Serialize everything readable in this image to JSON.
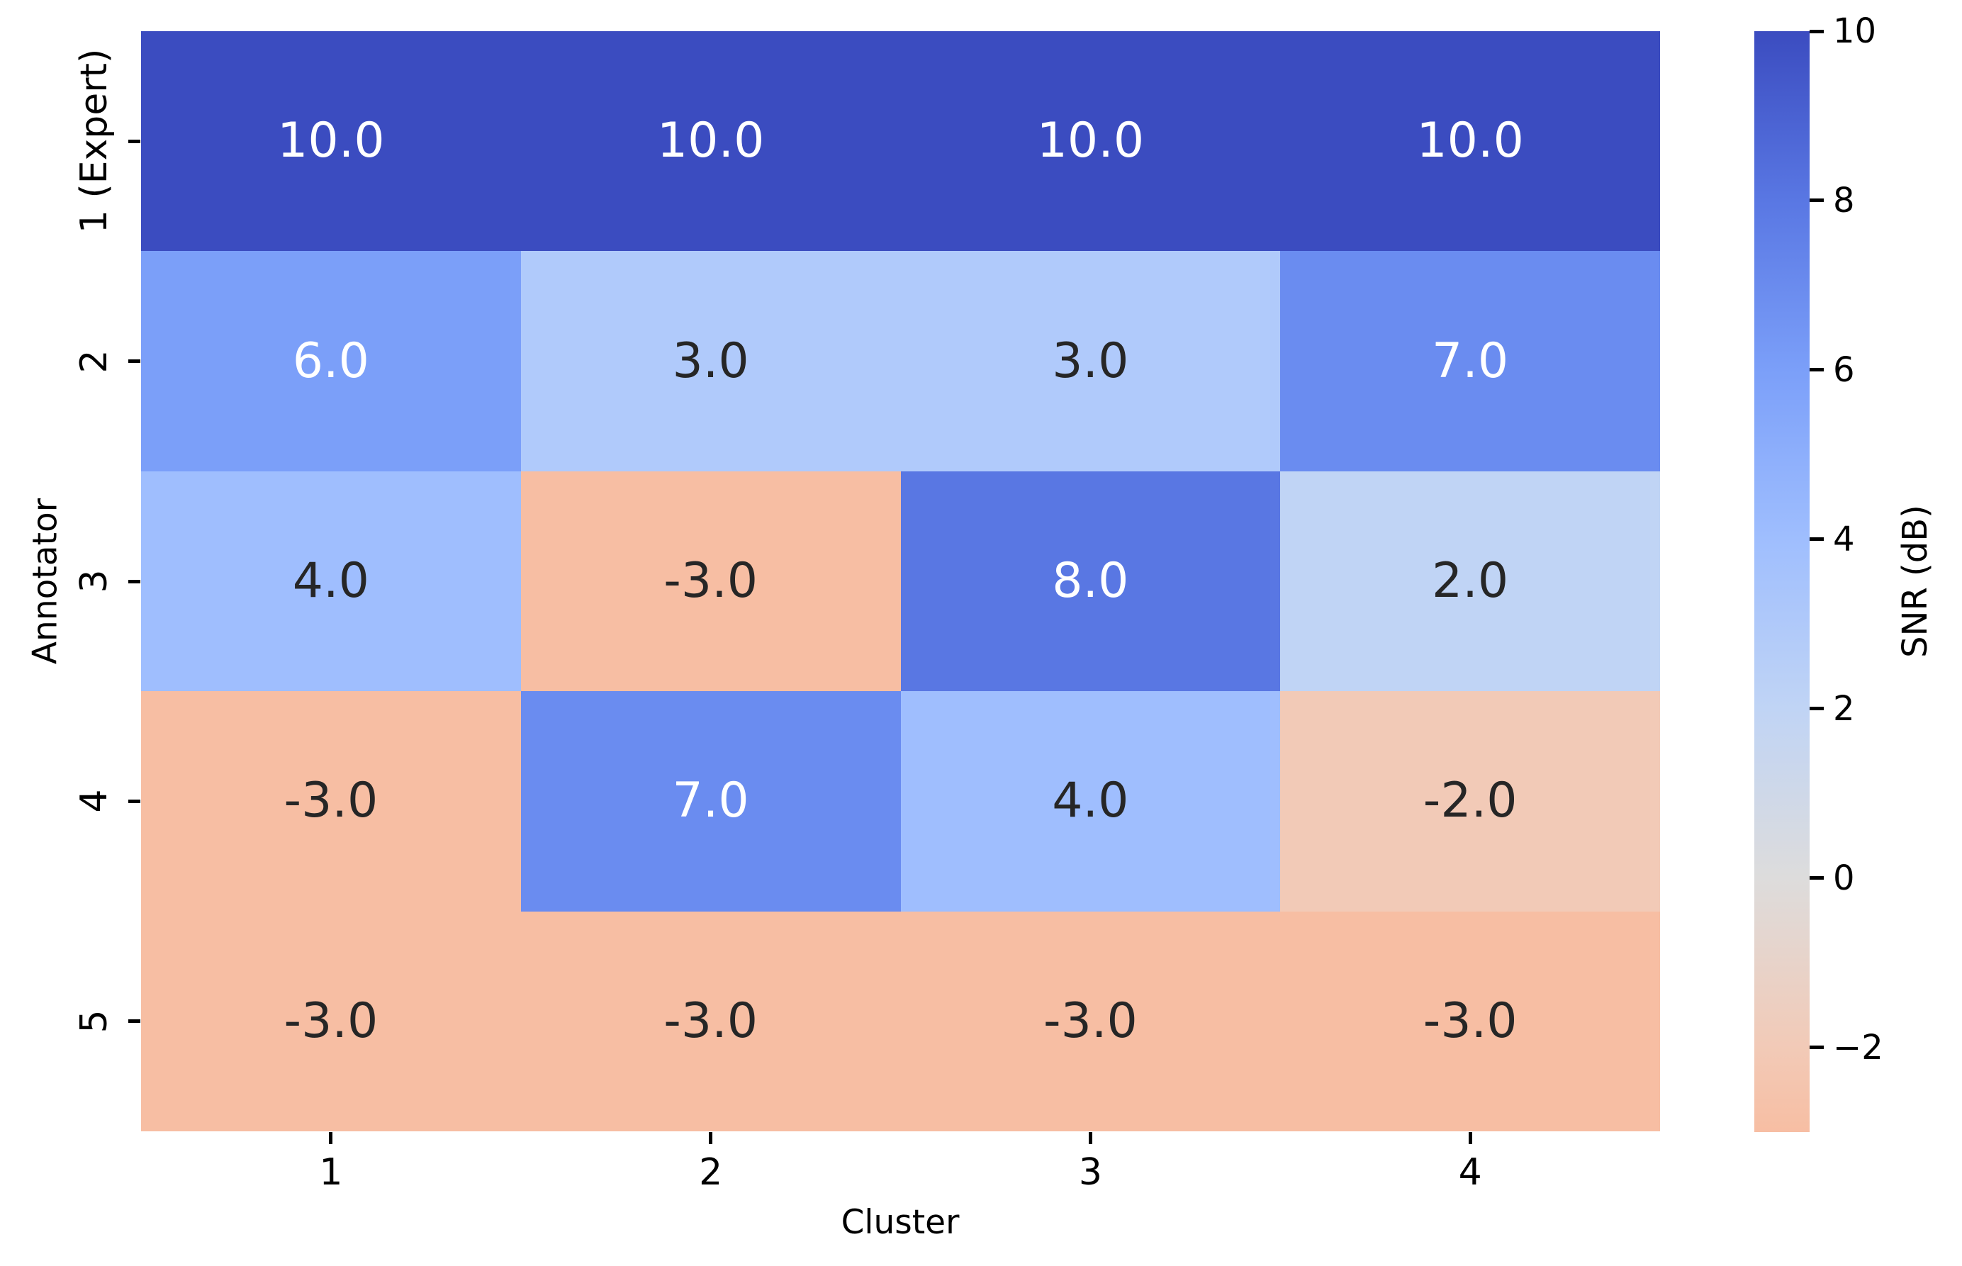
{
  "figure": {
    "background": "#ffffff",
    "text_color": "#000000"
  },
  "chart_data": {
    "type": "heatmap",
    "title": "",
    "xlabel": "Cluster",
    "ylabel": "Annotator",
    "x_categories": [
      "1",
      "2",
      "3",
      "4"
    ],
    "y_categories": [
      "1 (Expert)",
      "2",
      "3",
      "4",
      "5"
    ],
    "values": [
      [
        10.0,
        10.0,
        10.0,
        10.0
      ],
      [
        6.0,
        3.0,
        3.0,
        7.0
      ],
      [
        4.0,
        -3.0,
        8.0,
        2.0
      ],
      [
        -3.0,
        7.0,
        4.0,
        -2.0
      ],
      [
        -3.0,
        -3.0,
        -3.0,
        -3.0
      ]
    ],
    "annotations": [
      [
        "10.0",
        "10.0",
        "10.0",
        "10.0"
      ],
      [
        "6.0",
        "3.0",
        "3.0",
        "7.0"
      ],
      [
        "4.0",
        "-3.0",
        "8.0",
        "2.0"
      ],
      [
        "-3.0",
        "7.0",
        "4.0",
        "-2.0"
      ],
      [
        "-3.0",
        "-3.0",
        "-3.0",
        "-3.0"
      ]
    ],
    "cell_colors": [
      [
        "#3b4cc0",
        "#3b4cc0",
        "#3b4cc0",
        "#3b4cc0"
      ],
      [
        "#7b9ff9",
        "#b0cafb",
        "#b0cafb",
        "#6a8cf0"
      ],
      [
        "#9fbefe",
        "#f7bea3",
        "#5977e3",
        "#c0d4f5"
      ],
      [
        "#f7bea3",
        "#6a8cf0",
        "#9fbefe",
        "#f2cab7"
      ],
      [
        "#f7bea3",
        "#f7bea3",
        "#f7bea3",
        "#f7bea3"
      ]
    ],
    "text_colors": [
      [
        "#ffffff",
        "#ffffff",
        "#ffffff",
        "#ffffff"
      ],
      [
        "#ffffff",
        "#262626",
        "#262626",
        "#ffffff"
      ],
      [
        "#262626",
        "#262626",
        "#ffffff",
        "#262626"
      ],
      [
        "#262626",
        "#ffffff",
        "#262626",
        "#262626"
      ],
      [
        "#262626",
        "#262626",
        "#262626",
        "#262626"
      ]
    ],
    "grid": false,
    "colormap": "coolwarm_r",
    "colorbar": {
      "label": "SNR (dB)",
      "vmin": -3,
      "vmax": 10,
      "tick_labels": [
        "10",
        "8",
        "6",
        "4",
        "2",
        "0",
        "−2"
      ],
      "tick_values": [
        10,
        8,
        6,
        4,
        2,
        0,
        -2
      ],
      "gradient_stops": [
        {
          "pos": "0%",
          "color": "#3b4cc0"
        },
        {
          "pos": "15.38%",
          "color": "#5977e3"
        },
        {
          "pos": "30.77%",
          "color": "#7b9ff9"
        },
        {
          "pos": "46.15%",
          "color": "#9fbefe"
        },
        {
          "pos": "61.54%",
          "color": "#c0d4f5"
        },
        {
          "pos": "76.92%",
          "color": "#dddcdc"
        },
        {
          "pos": "92.31%",
          "color": "#f2cab7"
        },
        {
          "pos": "100%",
          "color": "#f7bea3"
        }
      ]
    }
  }
}
